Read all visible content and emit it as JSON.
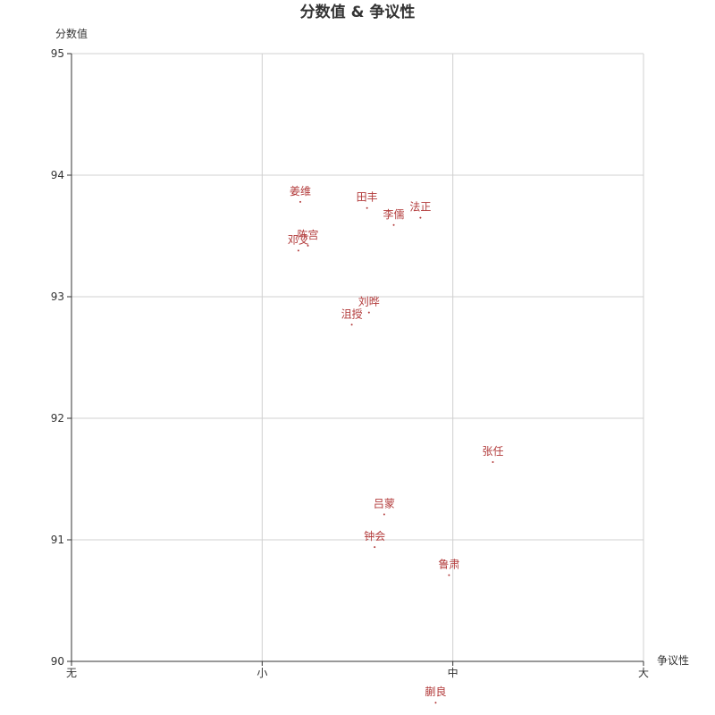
{
  "chart_data": {
    "type": "scatter",
    "title": "分数值 & 争议性",
    "xlabel": "争议性",
    "ylabel": "分数值",
    "x_categories": [
      "无",
      "小",
      "中",
      "大"
    ],
    "xlim": [
      0,
      3
    ],
    "ylim": [
      90,
      95
    ],
    "y_ticks": [
      90,
      91,
      92,
      93,
      94,
      95
    ],
    "grid": true,
    "colors": {
      "point": "#b23a3a",
      "grid": "#d0d0d0",
      "axis": "#333333"
    },
    "points": [
      {
        "name": "姜维",
        "x": 1.2,
        "y": 93.78
      },
      {
        "name": "田丰",
        "x": 1.55,
        "y": 93.73
      },
      {
        "name": "法正",
        "x": 1.83,
        "y": 93.65
      },
      {
        "name": "李儒",
        "x": 1.69,
        "y": 93.59
      },
      {
        "name": "陈宫",
        "x": 1.24,
        "y": 93.42
      },
      {
        "name": "邓艾",
        "x": 1.19,
        "y": 93.38
      },
      {
        "name": "刘晔",
        "x": 1.56,
        "y": 92.87
      },
      {
        "name": "沮授",
        "x": 1.47,
        "y": 92.77
      },
      {
        "name": "张任",
        "x": 2.21,
        "y": 91.64
      },
      {
        "name": "吕蒙",
        "x": 1.64,
        "y": 91.21
      },
      {
        "name": "钟会",
        "x": 1.59,
        "y": 90.94
      },
      {
        "name": "鲁肃",
        "x": 1.98,
        "y": 90.71
      },
      {
        "name": "蒯良",
        "x": 1.91,
        "y": 89.66
      }
    ]
  }
}
